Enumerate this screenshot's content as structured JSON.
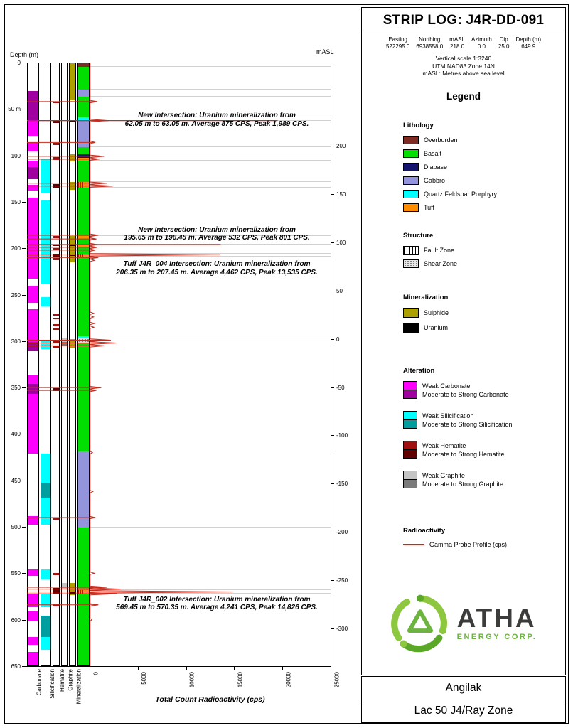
{
  "header": {
    "title": "STRIP LOG: J4R-DD-091",
    "fields": [
      {
        "label": "Easting",
        "value": "522295.0"
      },
      {
        "label": "Northing",
        "value": "6938558.0"
      },
      {
        "label": "mASL",
        "value": "218.0"
      },
      {
        "label": "Azimuth",
        "value": "0.0"
      },
      {
        "label": "Dip",
        "value": "25.0"
      },
      {
        "label": "Depth (m)",
        "value": "649.9"
      }
    ],
    "notes": [
      "Vertical scale 1:3240",
      "UTM NAD83 Zone 14N",
      "mASL: Metres above sea level"
    ]
  },
  "log": {
    "depth_label": "Depth (m)",
    "masl_label": "mASL",
    "xaxis_title": "Total Count Radioactivity (cps)",
    "column_labels": [
      "Carbonate",
      "Silicification",
      "Hematite",
      "Graphite",
      "Mineralization"
    ],
    "depth_ticks": [
      {
        "d": 0,
        "label": "0"
      },
      {
        "d": 50,
        "label": "50 m"
      },
      {
        "d": 100,
        "label": "100"
      },
      {
        "d": 150,
        "label": "150"
      },
      {
        "d": 200,
        "label": "200"
      },
      {
        "d": 250,
        "label": "250"
      },
      {
        "d": 300,
        "label": "300"
      },
      {
        "d": 350,
        "label": "350"
      },
      {
        "d": 400,
        "label": "400"
      },
      {
        "d": 450,
        "label": "450"
      },
      {
        "d": 500,
        "label": "500"
      },
      {
        "d": 550,
        "label": "550"
      },
      {
        "d": 600,
        "label": "600"
      },
      {
        "d": 650,
        "label": "650"
      }
    ],
    "masl_ticks": [
      "200",
      "150",
      "100",
      "50",
      "0",
      "-50",
      "-100",
      "-150",
      "-200",
      "-250",
      "-300"
    ],
    "x_ticks": [
      {
        "cps": 0,
        "label": "0"
      },
      {
        "cps": 5000,
        "label": "5000"
      },
      {
        "cps": 10000,
        "label": "10000"
      },
      {
        "cps": 15000,
        "label": "15000"
      },
      {
        "cps": 20000,
        "label": "20000"
      },
      {
        "cps": 25000,
        "label": "25000"
      }
    ]
  },
  "legend": {
    "title": "Legend",
    "lithology_title": "Lithology",
    "lithology_items": [
      {
        "label": "Overburden",
        "color": "#7D2B23"
      },
      {
        "label": "Basalt",
        "color": "#00DF00"
      },
      {
        "label": "Diabase",
        "color": "#14146E"
      },
      {
        "label": "Gabbro",
        "color": "#9494DC"
      },
      {
        "label": "Quartz Feldspar Porphyry",
        "color": "#00FFFF"
      },
      {
        "label": "Tuff",
        "color": "#FF8C00"
      }
    ],
    "structure_title": "Structure",
    "structure_items": [
      {
        "label": "Fault Zone",
        "pattern": "fault"
      },
      {
        "label": "Shear Zone",
        "pattern": "shear"
      }
    ],
    "mineralization_title": "Mineralization",
    "mineralization_items": [
      {
        "label": "Sulphide",
        "color": "#ACA000"
      },
      {
        "label": "Uranium",
        "color": "#000000"
      }
    ],
    "alteration_title": "Alteration",
    "alteration_pairs": [
      {
        "weak": "Weak Carbonate",
        "weak_color": "#FF00FF",
        "strong": "Moderate to Strong Carbonate",
        "strong_color": "#A000A0"
      },
      {
        "weak": "Weak Silicification",
        "weak_color": "#00FFFF",
        "strong": "Moderate to Strong Silicification",
        "strong_color": "#009E9E"
      },
      {
        "weak": "Weak Hematite",
        "weak_color": "#A01010",
        "strong": "Moderate to Strong Hematite",
        "strong_color": "#600000"
      },
      {
        "weak": "Weak Graphite",
        "weak_color": "#C4C4C4",
        "strong": "Moderate to Strong Graphite",
        "strong_color": "#7A7A7A"
      }
    ],
    "radioactivity_title": "Radioactivity",
    "radioactivity_label": "Gamma Probe Profile (cps)"
  },
  "logo": {
    "name": "ATHA",
    "subtitle": "ENERGY CORP."
  },
  "footer": {
    "line1": "Angilak",
    "line2": "Lac 50 J4/Ray Zone"
  },
  "chart_data": {
    "type": "strip-log",
    "hole_id": "J4R-DD-091",
    "depth_axis": {
      "label": "Depth (m)",
      "range_m": [
        0,
        650
      ],
      "tick_interval_m": 50
    },
    "cps_axis": {
      "label": "Total Count Radioactivity (cps)",
      "range": [
        0,
        25000
      ]
    },
    "masl_axis": {
      "label": "mASL",
      "ticks": [
        200,
        150,
        100,
        50,
        0,
        -50,
        -100,
        -150,
        -200,
        -250,
        -300
      ]
    },
    "collar_masl": 218.0,
    "colors": {
      "overburden": "#7D2B23",
      "basalt": "#00DF00",
      "diabase": "#14146E",
      "gabbro": "#9494DC",
      "qfp": "#00FFFF",
      "tuff": "#FF8C00",
      "sulphide": "#ACA000",
      "uranium": "#000000",
      "carbonate_w": "#FF00FF",
      "carbonate_s": "#A000A0",
      "silicification_w": "#00FFFF",
      "silicification_s": "#009E9E",
      "hematite_w": "#A01010",
      "hematite_s": "#600000",
      "graphite_w": "#C4C4C4",
      "graphite_s": "#7A7A7A",
      "gamma": "#C42B1C"
    },
    "lithology_intervals": [
      {
        "from": 0,
        "to": 4,
        "unit": "overburden"
      },
      {
        "from": 4,
        "to": 28,
        "unit": "basalt"
      },
      {
        "from": 28,
        "to": 36,
        "unit": "gabbro"
      },
      {
        "from": 36,
        "to": 58,
        "unit": "basalt"
      },
      {
        "from": 58,
        "to": 62,
        "unit": "qfp"
      },
      {
        "from": 62,
        "to": 90,
        "unit": "gabbro"
      },
      {
        "from": 90,
        "to": 98,
        "unit": "basalt"
      },
      {
        "from": 98,
        "to": 102,
        "unit": "diabase"
      },
      {
        "from": 102,
        "to": 105,
        "unit": "tuff"
      },
      {
        "from": 105,
        "to": 128,
        "unit": "basalt"
      },
      {
        "from": 128,
        "to": 134,
        "unit": "tuff"
      },
      {
        "from": 134,
        "to": 186,
        "unit": "basalt"
      },
      {
        "from": 186,
        "to": 189,
        "unit": "tuff"
      },
      {
        "from": 189,
        "to": 195,
        "unit": "basalt"
      },
      {
        "from": 195,
        "to": 198,
        "unit": "tuff"
      },
      {
        "from": 198,
        "to": 205,
        "unit": "basalt"
      },
      {
        "from": 205,
        "to": 208,
        "unit": "tuff"
      },
      {
        "from": 208,
        "to": 294,
        "unit": "basalt"
      },
      {
        "from": 294,
        "to": 298,
        "unit": "qfp"
      },
      {
        "from": 298,
        "to": 302,
        "unit": "gabbro"
      },
      {
        "from": 302,
        "to": 418,
        "unit": "basalt"
      },
      {
        "from": 418,
        "to": 500,
        "unit": "gabbro"
      },
      {
        "from": 500,
        "to": 567,
        "unit": "basalt"
      },
      {
        "from": 567,
        "to": 571,
        "unit": "tuff"
      },
      {
        "from": 571,
        "to": 650,
        "unit": "basalt"
      }
    ],
    "alteration": {
      "carbonate": [
        {
          "from": 30,
          "to": 62,
          "grade": "s"
        },
        {
          "from": 62,
          "to": 78,
          "grade": "w"
        },
        {
          "from": 85,
          "to": 95,
          "grade": "w"
        },
        {
          "from": 105,
          "to": 112,
          "grade": "w"
        },
        {
          "from": 112,
          "to": 125,
          "grade": "s"
        },
        {
          "from": 131,
          "to": 137,
          "grade": "w"
        },
        {
          "from": 145,
          "to": 232,
          "grade": "w"
        },
        {
          "from": 240,
          "to": 258,
          "grade": "w"
        },
        {
          "from": 265,
          "to": 300,
          "grade": "w"
        },
        {
          "from": 300,
          "to": 310,
          "grade": "s"
        },
        {
          "from": 335,
          "to": 345,
          "grade": "w"
        },
        {
          "from": 345,
          "to": 356,
          "grade": "s"
        },
        {
          "from": 356,
          "to": 420,
          "grade": "w"
        },
        {
          "from": 488,
          "to": 497,
          "grade": "w"
        },
        {
          "from": 545,
          "to": 552,
          "grade": "w"
        },
        {
          "from": 572,
          "to": 586,
          "grade": "w"
        },
        {
          "from": 590,
          "to": 600,
          "grade": "w"
        },
        {
          "from": 618,
          "to": 626,
          "grade": "w"
        },
        {
          "from": 634,
          "to": 650,
          "grade": "w"
        }
      ],
      "silicification": [
        {
          "from": 103,
          "to": 140,
          "grade": "w"
        },
        {
          "from": 148,
          "to": 238,
          "grade": "w"
        },
        {
          "from": 252,
          "to": 262,
          "grade": "w"
        },
        {
          "from": 298,
          "to": 308,
          "grade": "w"
        },
        {
          "from": 420,
          "to": 452,
          "grade": "w"
        },
        {
          "from": 452,
          "to": 468,
          "grade": "s"
        },
        {
          "from": 468,
          "to": 497,
          "grade": "w"
        },
        {
          "from": 545,
          "to": 556,
          "grade": "w"
        },
        {
          "from": 572,
          "to": 586,
          "grade": "w"
        },
        {
          "from": 595,
          "to": 618,
          "grade": "s"
        },
        {
          "from": 618,
          "to": 632,
          "grade": "w"
        }
      ],
      "hematite": [
        {
          "from": 41,
          "to": 43,
          "grade": "w"
        },
        {
          "from": 61,
          "to": 64,
          "grade": "s"
        },
        {
          "from": 86,
          "to": 88,
          "grade": "w"
        },
        {
          "from": 101,
          "to": 104,
          "grade": "w"
        },
        {
          "from": 130,
          "to": 134,
          "grade": "s"
        },
        {
          "from": 186,
          "to": 188,
          "grade": "w"
        },
        {
          "from": 195,
          "to": 197,
          "grade": "s"
        },
        {
          "from": 199,
          "to": 201,
          "grade": "w"
        },
        {
          "from": 205,
          "to": 208,
          "grade": "s"
        },
        {
          "from": 210,
          "to": 212,
          "grade": "w"
        },
        {
          "from": 270,
          "to": 272,
          "grade": "w"
        },
        {
          "from": 274,
          "to": 276,
          "grade": "w"
        },
        {
          "from": 281,
          "to": 283,
          "grade": "w"
        },
        {
          "from": 285,
          "to": 287,
          "grade": "w"
        },
        {
          "from": 299,
          "to": 302,
          "grade": "w"
        },
        {
          "from": 304,
          "to": 306,
          "grade": "w"
        },
        {
          "from": 350,
          "to": 353,
          "grade": "s"
        },
        {
          "from": 490,
          "to": 492,
          "grade": "w"
        },
        {
          "from": 549,
          "to": 551,
          "grade": "w"
        },
        {
          "from": 565,
          "to": 572,
          "grade": "s"
        },
        {
          "from": 583,
          "to": 585,
          "grade": "w"
        }
      ],
      "graphite": [
        {
          "from": 296,
          "to": 300,
          "grade": "w"
        },
        {
          "from": 300,
          "to": 304,
          "grade": "s"
        },
        {
          "from": 560,
          "to": 566,
          "grade": "w"
        }
      ]
    },
    "mineralization_intervals": [
      {
        "from": 0,
        "to": 40,
        "mineral": "sulphide"
      },
      {
        "from": 98,
        "to": 106,
        "mineral": "sulphide"
      },
      {
        "from": 128,
        "to": 136,
        "mineral": "sulphide"
      },
      {
        "from": 186,
        "to": 214,
        "mineral": "sulphide"
      },
      {
        "from": 297,
        "to": 306,
        "mineral": "sulphide"
      },
      {
        "from": 560,
        "to": 573,
        "mineral": "sulphide"
      },
      {
        "from": 62,
        "to": 63.5,
        "mineral": "uranium"
      },
      {
        "from": 195.5,
        "to": 196.8,
        "mineral": "uranium"
      },
      {
        "from": 206,
        "to": 207.8,
        "mineral": "uranium"
      },
      {
        "from": 569,
        "to": 570.8,
        "mineral": "uranium"
      }
    ],
    "structure_overlays": [
      {
        "from": 128,
        "to": 134,
        "type": "fault"
      },
      {
        "from": 205,
        "to": 208,
        "type": "fault"
      },
      {
        "from": 296,
        "to": 302,
        "type": "shear"
      },
      {
        "from": 567,
        "to": 571,
        "type": "fault"
      }
    ],
    "gamma_baseline_cps": 60,
    "gamma_spikes": [
      {
        "depth": 42,
        "cps": 800
      },
      {
        "depth": 62.5,
        "cps": 1989
      },
      {
        "depth": 86,
        "cps": 600
      },
      {
        "depth": 101,
        "cps": 1500
      },
      {
        "depth": 104,
        "cps": 1000
      },
      {
        "depth": 130,
        "cps": 1800
      },
      {
        "depth": 133,
        "cps": 2400
      },
      {
        "depth": 186,
        "cps": 900
      },
      {
        "depth": 190,
        "cps": 700
      },
      {
        "depth": 196,
        "cps": 801
      },
      {
        "depth": 199,
        "cps": 800
      },
      {
        "depth": 202,
        "cps": 600
      },
      {
        "depth": 207,
        "cps": 13535
      },
      {
        "depth": 210,
        "cps": 900
      },
      {
        "depth": 213,
        "cps": 500
      },
      {
        "depth": 270,
        "cps": 420
      },
      {
        "depth": 274,
        "cps": 420
      },
      {
        "depth": 281,
        "cps": 520
      },
      {
        "depth": 285,
        "cps": 450
      },
      {
        "depth": 299,
        "cps": 2200
      },
      {
        "depth": 302,
        "cps": 2800
      },
      {
        "depth": 305,
        "cps": 1500
      },
      {
        "depth": 350,
        "cps": 1200
      },
      {
        "depth": 353,
        "cps": 700
      },
      {
        "depth": 420,
        "cps": 300
      },
      {
        "depth": 462,
        "cps": 350
      },
      {
        "depth": 490,
        "cps": 600
      },
      {
        "depth": 550,
        "cps": 500
      },
      {
        "depth": 565,
        "cps": 1800
      },
      {
        "depth": 567,
        "cps": 3200
      },
      {
        "depth": 570,
        "cps": 14826
      },
      {
        "depth": 572,
        "cps": 2800
      },
      {
        "depth": 584,
        "cps": 900
      },
      {
        "depth": 600,
        "cps": 250
      }
    ],
    "leader_lines": [
      {
        "depth": 62.5,
        "to_cps": 19500
      },
      {
        "depth": 196,
        "to_cps": 13600
      }
    ],
    "contact_depths": [
      4,
      28,
      36,
      58,
      62,
      90,
      98,
      105,
      128,
      134,
      186,
      195,
      205,
      208,
      294,
      302,
      418,
      500,
      567,
      571
    ],
    "annotations": [
      {
        "top_depth": 53,
        "line1": "New Intersection: Uranium mineralization from",
        "line2": "62.05 m to 63.05 m. Average 875 CPS, Peak 1,989 CPS."
      },
      {
        "top_depth": 176,
        "line1": "New Intersection: Uranium mineralization from",
        "line2": "195.65 m to 196.45 m. Average 532 CPS, Peak 801 CPS."
      },
      {
        "top_depth": 213,
        "line1": "Tuff J4R_004 Intersection: Uranium mineralization from",
        "line2": "206.35 m to 207.45 m. Average 4,462 CPS, Peak 13,535 CPS."
      },
      {
        "top_depth": 574,
        "line1": "Tuff J4R_002 Intersection: Uranium mineralization from",
        "line2": "569.45 m to 570.35 m. Average 4,241 CPS, Peak 14,826 CPS."
      }
    ]
  }
}
